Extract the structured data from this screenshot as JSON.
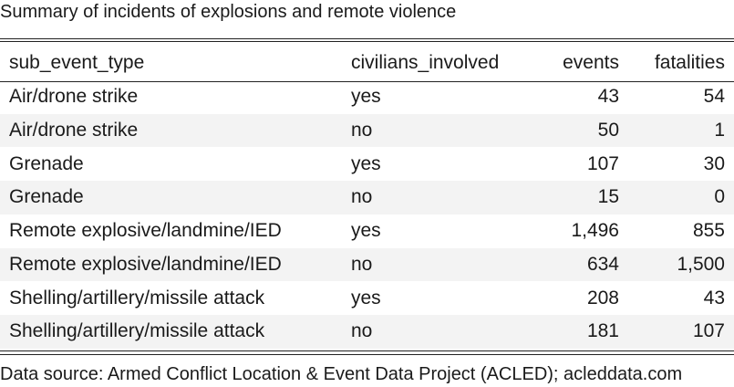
{
  "caption": "Summary of incidents of explosions and remote violence",
  "table": {
    "headers": [
      "sub_event_type",
      "civilians_involved",
      "events",
      "fatalities"
    ],
    "rows": [
      [
        "Air/drone strike",
        "yes",
        "43",
        "54"
      ],
      [
        "Air/drone strike",
        "no",
        "50",
        "1"
      ],
      [
        "Grenade",
        "yes",
        "107",
        "30"
      ],
      [
        "Grenade",
        "no",
        "15",
        "0"
      ],
      [
        "Remote explosive/landmine/IED",
        "yes",
        "1,496",
        "855"
      ],
      [
        "Remote explosive/landmine/IED",
        "no",
        "634",
        "1,500"
      ],
      [
        "Shelling/artillery/missile attack",
        "yes",
        "208",
        "43"
      ],
      [
        "Shelling/artillery/missile attack",
        "no",
        "181",
        "107"
      ]
    ]
  },
  "footer": "Data source: Armed Conflict Location & Event Data Project (ACLED); acleddata.com"
}
